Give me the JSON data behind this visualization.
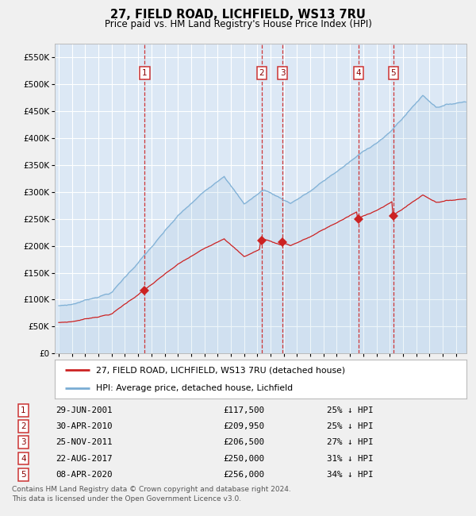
{
  "title": "27, FIELD ROAD, LICHFIELD, WS13 7RU",
  "subtitle": "Price paid vs. HM Land Registry's House Price Index (HPI)",
  "legend_line1": "27, FIELD ROAD, LICHFIELD, WS13 7RU (detached house)",
  "legend_line2": "HPI: Average price, detached house, Lichfield",
  "footer_line1": "Contains HM Land Registry data © Crown copyright and database right 2024.",
  "footer_line2": "This data is licensed under the Open Government Licence v3.0.",
  "hpi_color": "#7aadd4",
  "price_color": "#cc2222",
  "plot_bg": "#dce8f5",
  "fig_bg": "#f0f0f0",
  "ylim": [
    0,
    575000
  ],
  "yticks": [
    0,
    50000,
    100000,
    150000,
    200000,
    250000,
    300000,
    350000,
    400000,
    450000,
    500000,
    550000
  ],
  "xstart": 1994.7,
  "xend": 2025.8,
  "transactions": [
    {
      "num": 1,
      "date_year": 2001.495,
      "price": 117500,
      "pct": "25%",
      "label": "29-JUN-2001",
      "price_label": "£117,500"
    },
    {
      "num": 2,
      "date_year": 2010.329,
      "price": 209950,
      "pct": "25%",
      "label": "30-APR-2010",
      "price_label": "£209,950"
    },
    {
      "num": 3,
      "date_year": 2011.899,
      "price": 206500,
      "pct": "27%",
      "label": "25-NOV-2011",
      "price_label": "£206,500"
    },
    {
      "num": 4,
      "date_year": 2017.64,
      "price": 250000,
      "pct": "31%",
      "label": "22-AUG-2017",
      "price_label": "£250,000"
    },
    {
      "num": 5,
      "date_year": 2020.271,
      "price": 256000,
      "pct": "34%",
      "label": "08-APR-2020",
      "price_label": "£256,000"
    }
  ]
}
